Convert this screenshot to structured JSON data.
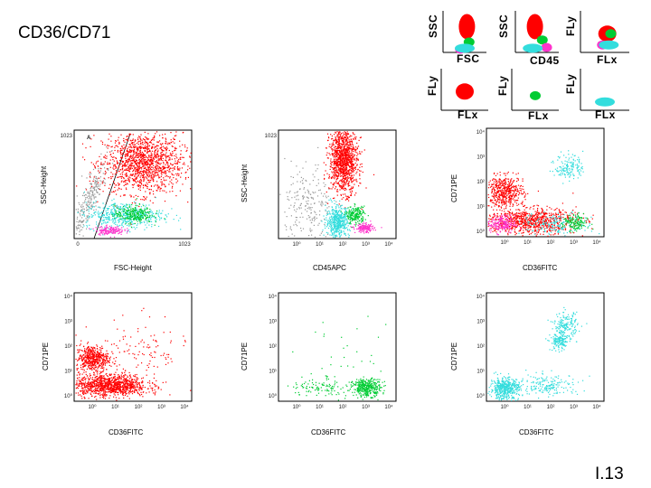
{
  "slide": {
    "title": "CD36/CD71",
    "page_number": "I.13"
  },
  "chart_data": [
    {
      "type": "scatter",
      "id": "mini-ssc-fsc",
      "xlabel": "FSC",
      "ylabel": "SSC",
      "series": [
        {
          "color": "#ff0000",
          "x": [
            0.55
          ],
          "y": [
            0.62
          ]
        },
        {
          "color": "#00cc33",
          "x": [
            0.6
          ],
          "y": [
            0.25
          ]
        },
        {
          "color": "#ff33cc",
          "x": [
            0.4
          ],
          "y": [
            0.08
          ]
        },
        {
          "color": "#33dddd",
          "x": [
            0.5
          ],
          "y": [
            0.1
          ]
        }
      ]
    },
    {
      "type": "scatter",
      "id": "mini-ssc-cd45",
      "xlabel": "CD45",
      "ylabel": "SSC",
      "series": [
        {
          "color": "#ff0000",
          "x": [
            0.45
          ],
          "y": [
            0.62
          ]
        },
        {
          "color": "#00cc33",
          "x": [
            0.62
          ],
          "y": [
            0.3
          ]
        },
        {
          "color": "#ff33cc",
          "x": [
            0.72
          ],
          "y": [
            0.12
          ]
        },
        {
          "color": "#33dddd",
          "x": [
            0.4
          ],
          "y": [
            0.1
          ]
        }
      ]
    },
    {
      "type": "scatter",
      "id": "mini-fly-flx-top",
      "xlabel": "FLx",
      "ylabel": "FLy",
      "series": [
        {
          "color": "#ff0000",
          "x": [
            0.55
          ],
          "y": [
            0.45
          ]
        },
        {
          "color": "#00cc33",
          "x": [
            0.62
          ],
          "y": [
            0.45
          ]
        },
        {
          "color": "#ff33cc",
          "x": [
            0.45
          ],
          "y": [
            0.18
          ]
        },
        {
          "color": "#33dddd",
          "x": [
            0.58
          ],
          "y": [
            0.18
          ]
        }
      ]
    },
    {
      "type": "scatter",
      "id": "mini-fly-flx-red",
      "xlabel": "FLx",
      "ylabel": "FLy",
      "series": [
        {
          "color": "#ff0000",
          "x": [
            0.5
          ],
          "y": [
            0.45
          ]
        }
      ]
    },
    {
      "type": "scatter",
      "id": "mini-fly-flx-green",
      "xlabel": "FLx",
      "ylabel": "FLy",
      "series": [
        {
          "color": "#00cc33",
          "x": [
            0.5
          ],
          "y": [
            0.35
          ]
        }
      ]
    },
    {
      "type": "scatter",
      "id": "mini-fly-flx-cyan",
      "xlabel": "FLx",
      "ylabel": "FLy",
      "series": [
        {
          "color": "#33dddd",
          "x": [
            0.5
          ],
          "y": [
            0.2
          ]
        }
      ]
    },
    {
      "type": "scatter",
      "id": "ssc-vs-fsc",
      "xlabel": "FSC-Height",
      "ylabel": "SSC-Height",
      "gate_label": "A",
      "xlim": [
        0,
        1023
      ],
      "ylim": [
        0,
        1023
      ],
      "x_ticks": [
        "0",
        "1023"
      ],
      "y_ticks": [
        "1023"
      ],
      "populations": [
        {
          "color": "#999999",
          "x": 0.12,
          "y": 0.35,
          "sx": 0.04,
          "sy": 0.2,
          "n": 280,
          "tilt": 1.1
        },
        {
          "color": "#ff0000",
          "x": 0.58,
          "y": 0.7,
          "sx": 0.17,
          "sy": 0.14,
          "n": 1400
        },
        {
          "color": "#33dddd",
          "x": 0.42,
          "y": 0.22,
          "sx": 0.17,
          "sy": 0.06,
          "n": 500
        },
        {
          "color": "#00cc33",
          "x": 0.5,
          "y": 0.23,
          "sx": 0.08,
          "sy": 0.04,
          "n": 250
        },
        {
          "color": "#ff33cc",
          "x": 0.3,
          "y": 0.08,
          "sx": 0.06,
          "sy": 0.02,
          "n": 160
        }
      ]
    },
    {
      "type": "scatter",
      "id": "ssc-vs-cd45",
      "xlabel": "CD45APC",
      "ylabel": "SSC-Height",
      "xlim": [
        1,
        10000
      ],
      "ylim": [
        0,
        1023
      ],
      "x_ticks": [
        "10⁰",
        "10¹",
        "10²",
        "10³",
        "10⁴"
      ],
      "y_ticks": [
        "1023"
      ],
      "populations": [
        {
          "color": "#999999",
          "x": 0.25,
          "y": 0.3,
          "sx": 0.1,
          "sy": 0.2,
          "n": 220
        },
        {
          "color": "#ff0000",
          "x": 0.55,
          "y": 0.73,
          "sx": 0.06,
          "sy": 0.15,
          "n": 1200
        },
        {
          "color": "#33dddd",
          "x": 0.5,
          "y": 0.16,
          "sx": 0.05,
          "sy": 0.07,
          "n": 500
        },
        {
          "color": "#00cc33",
          "x": 0.65,
          "y": 0.22,
          "sx": 0.04,
          "sy": 0.04,
          "n": 200
        },
        {
          "color": "#ff33cc",
          "x": 0.73,
          "y": 0.1,
          "sx": 0.04,
          "sy": 0.02,
          "n": 160
        }
      ]
    },
    {
      "type": "scatter",
      "id": "cd71-vs-cd36-all",
      "xlabel": "CD36FITC",
      "ylabel": "CD71PE",
      "xlim": [
        1,
        10000
      ],
      "ylim": [
        1,
        10000
      ],
      "x_ticks": [
        "10⁰",
        "10¹",
        "10²",
        "10³",
        "10⁴"
      ],
      "y_ticks": [
        "10⁰",
        "10¹",
        "10²",
        "10³",
        "10⁴"
      ],
      "populations": [
        {
          "color": "#ff0000",
          "x": 0.15,
          "y": 0.42,
          "sx": 0.08,
          "sy": 0.07,
          "n": 500
        },
        {
          "color": "#ff0000",
          "x": 0.35,
          "y": 0.15,
          "sx": 0.2,
          "sy": 0.06,
          "n": 900
        },
        {
          "color": "#33dddd",
          "x": 0.7,
          "y": 0.65,
          "sx": 0.06,
          "sy": 0.06,
          "n": 150
        },
        {
          "color": "#33dddd",
          "x": 0.6,
          "y": 0.12,
          "sx": 0.15,
          "sy": 0.05,
          "n": 180
        },
        {
          "color": "#00cc33",
          "x": 0.75,
          "y": 0.13,
          "sx": 0.05,
          "sy": 0.04,
          "n": 150
        },
        {
          "color": "#ff33cc",
          "x": 0.12,
          "y": 0.12,
          "sx": 0.06,
          "sy": 0.04,
          "n": 200
        }
      ]
    },
    {
      "type": "scatter",
      "id": "cd71-vs-cd36-red",
      "xlabel": "CD36FITC",
      "ylabel": "CD71PE",
      "xlim": [
        1,
        10000
      ],
      "ylim": [
        1,
        10000
      ],
      "x_ticks": [
        "10⁰",
        "10¹",
        "10²",
        "10³",
        "10⁴"
      ],
      "y_ticks": [
        "10⁰",
        "10¹",
        "10²",
        "10³",
        "10⁴"
      ],
      "populations": [
        {
          "color": "#ff0000",
          "x": 0.15,
          "y": 0.4,
          "sx": 0.07,
          "sy": 0.06,
          "n": 500
        },
        {
          "color": "#ff0000",
          "x": 0.3,
          "y": 0.15,
          "sx": 0.16,
          "sy": 0.05,
          "n": 1100
        },
        {
          "color": "#ff0000",
          "x": 0.55,
          "y": 0.45,
          "sx": 0.2,
          "sy": 0.15,
          "n": 120
        }
      ]
    },
    {
      "type": "scatter",
      "id": "cd71-vs-cd36-green",
      "xlabel": "CD36FITC",
      "ylabel": "CD71PE",
      "xlim": [
        1,
        10000
      ],
      "ylim": [
        1,
        10000
      ],
      "x_ticks": [
        "10⁰",
        "10¹",
        "10²",
        "10³",
        "10⁴"
      ],
      "y_ticks": [
        "10⁰",
        "10¹",
        "10²",
        "10³",
        "10⁴"
      ],
      "populations": [
        {
          "color": "#00cc33",
          "x": 0.75,
          "y": 0.13,
          "sx": 0.06,
          "sy": 0.04,
          "n": 350
        },
        {
          "color": "#00cc33",
          "x": 0.4,
          "y": 0.14,
          "sx": 0.15,
          "sy": 0.05,
          "n": 120
        },
        {
          "color": "#00cc33",
          "x": 0.6,
          "y": 0.4,
          "sx": 0.2,
          "sy": 0.2,
          "n": 30
        }
      ]
    },
    {
      "type": "scatter",
      "id": "cd71-vs-cd36-cyan",
      "xlabel": "CD36FITC",
      "ylabel": "CD71PE",
      "xlim": [
        1,
        10000
      ],
      "ylim": [
        1,
        10000
      ],
      "x_ticks": [
        "10⁰",
        "10¹",
        "10²",
        "10³",
        "10⁴"
      ],
      "y_ticks": [
        "10⁰",
        "10¹",
        "10²",
        "10³",
        "10⁴"
      ],
      "populations": [
        {
          "color": "#33dddd",
          "x": 0.15,
          "y": 0.12,
          "sx": 0.06,
          "sy": 0.05,
          "n": 450
        },
        {
          "color": "#33dddd",
          "x": 0.5,
          "y": 0.15,
          "sx": 0.15,
          "sy": 0.05,
          "n": 200
        },
        {
          "color": "#33dddd",
          "x": 0.67,
          "y": 0.7,
          "sx": 0.05,
          "sy": 0.06,
          "n": 180
        },
        {
          "color": "#33dddd",
          "x": 0.62,
          "y": 0.55,
          "sx": 0.04,
          "sy": 0.04,
          "n": 150
        }
      ]
    }
  ]
}
